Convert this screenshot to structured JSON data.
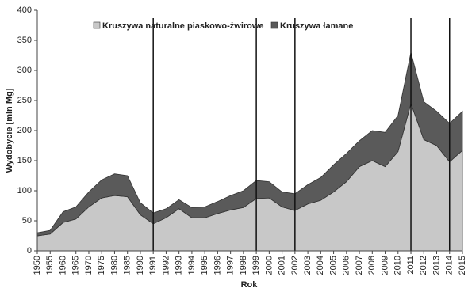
{
  "chart_data": {
    "type": "stacked-area",
    "x_label": "Rok",
    "y_label": "Wydobycie [mln Mg]",
    "categories": [
      "1950",
      "1955",
      "1960",
      "1965",
      "1970",
      "1975",
      "1980",
      "1985",
      "1990",
      "1991",
      "1992",
      "1993",
      "1994",
      "1995",
      "1996",
      "1997",
      "1998",
      "1999",
      "2000",
      "2001",
      "2002",
      "2003",
      "2004",
      "2005",
      "2006",
      "2007",
      "2008",
      "2009",
      "2010",
      "2011",
      "2012",
      "2013",
      "2014",
      "2015"
    ],
    "series": [
      {
        "name": "Kruszywa naturalne piaskowo-żwirowe",
        "color": "#c8c8c8",
        "values": [
          25,
          28,
          47,
          53,
          73,
          88,
          92,
          90,
          60,
          45,
          55,
          70,
          55,
          55,
          62,
          68,
          72,
          87,
          88,
          73,
          67,
          78,
          84,
          98,
          115,
          140,
          150,
          140,
          165,
          245,
          185,
          175,
          148,
          167
        ]
      },
      {
        "name": "Kruszywa łamane",
        "color": "#5a5a5a",
        "values": [
          5,
          6,
          18,
          20,
          25,
          30,
          36,
          35,
          20,
          18,
          15,
          15,
          17,
          18,
          20,
          24,
          28,
          30,
          27,
          25,
          28,
          32,
          38,
          45,
          47,
          43,
          50,
          57,
          60,
          85,
          63,
          57,
          64,
          65
        ]
      }
    ],
    "marker_lines": [
      "1991",
      "1999",
      "2002",
      "2011",
      "2014"
    ],
    "ylim": [
      0,
      400
    ],
    "yticks": [
      0,
      50,
      100,
      150,
      200,
      250,
      300,
      350,
      400
    ],
    "legend": "top"
  }
}
